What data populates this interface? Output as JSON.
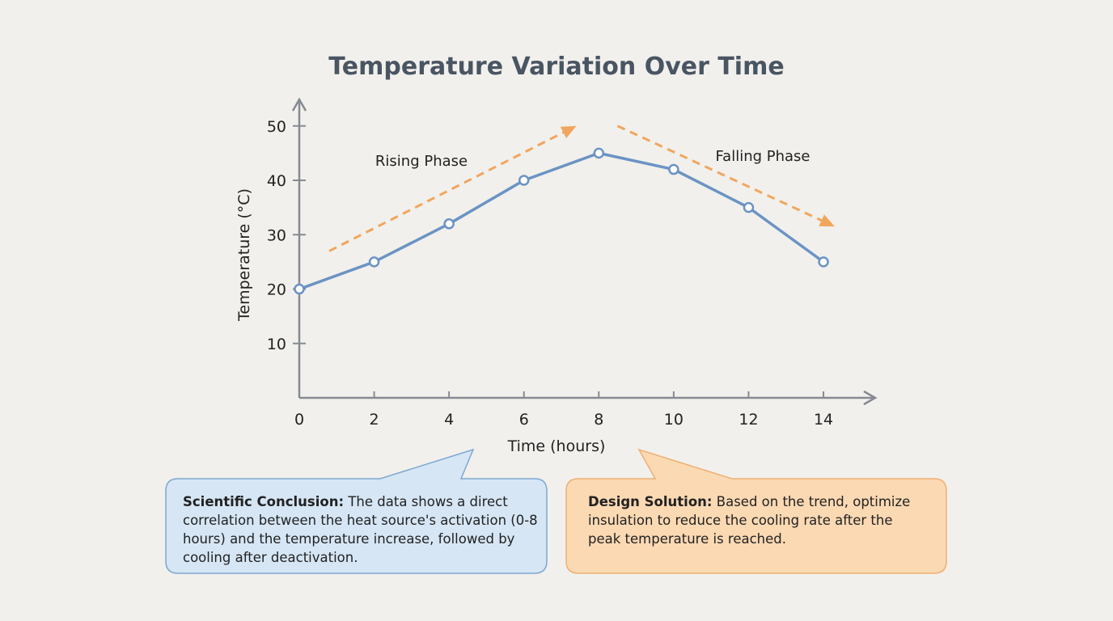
{
  "chart_data": {
    "type": "line",
    "title": "Temperature Variation Over Time",
    "xlabel": "Time (hours)",
    "ylabel": "Temperature (°C)",
    "x": [
      0,
      2,
      4,
      6,
      8,
      10,
      12,
      14
    ],
    "series": [
      {
        "values": [
          20,
          25,
          32,
          40,
          45,
          42,
          35,
          25
        ]
      }
    ],
    "xticks": [
      "0",
      "2",
      "4",
      "6",
      "8",
      "10",
      "12",
      "14"
    ],
    "yticks": [
      "10",
      "20",
      "30",
      "40",
      "50"
    ],
    "xlim": [
      0,
      15.5
    ],
    "ylim": [
      0,
      55
    ],
    "grid": false,
    "line_color": "#6b93c4",
    "trend_color": "#f1a65e",
    "annotations": [
      {
        "text": "Rising Phase",
        "from": [
          0.8,
          27
        ],
        "to": [
          7.4,
          50
        ]
      },
      {
        "text": "Falling Phase",
        "from": [
          8.5,
          50
        ],
        "to": [
          14.3,
          31.5
        ]
      }
    ]
  },
  "callouts": {
    "conclusion": {
      "heading": "Scientific Conclusion:",
      "body": " The data shows a direct correlation between the heat source's activation (0-8 hours) and the temperature increase, followed by cooling after deactivation.",
      "fill": "#d6e6f5",
      "border": "#7fa7d0"
    },
    "design": {
      "heading": "Design Solution:",
      "body": " Based on the trend, optimize insulation to reduce the cooling rate after the peak temperature is reached.",
      "fill": "#fbd9b3",
      "border": "#eeb073"
    }
  }
}
